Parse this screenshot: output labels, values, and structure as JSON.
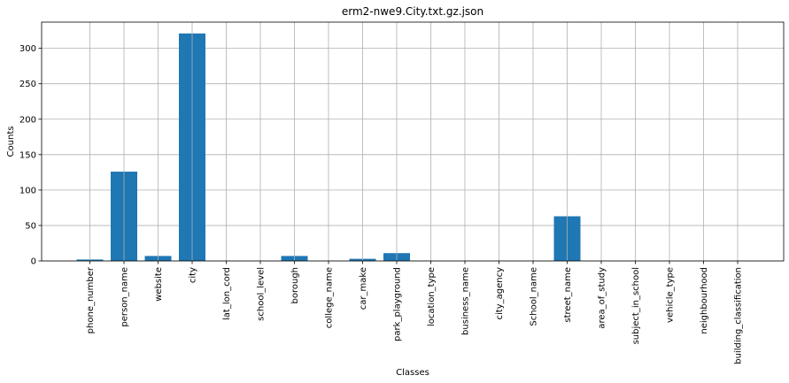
{
  "chart_data": {
    "type": "bar",
    "title": "erm2-nwe9.City.txt.gz.json",
    "xlabel": "Classes",
    "ylabel": "Counts",
    "categories": [
      "phone_number",
      "person_name",
      "website",
      "city",
      "lat_lon_cord",
      "school_level",
      "borough",
      "college_name",
      "car_make",
      "park_playground",
      "location_type",
      "business_name",
      "city_agency",
      "School_name",
      "street_name",
      "area_of_study",
      "subject_in_school",
      "vehicle_type",
      "neighbourhood",
      "building_classification"
    ],
    "values": [
      2,
      126,
      7,
      321,
      0,
      0,
      7,
      0,
      3,
      11,
      0,
      0,
      0,
      0,
      63,
      0,
      0,
      0,
      0,
      0
    ],
    "yticks": [
      0,
      50,
      100,
      150,
      200,
      250,
      300
    ],
    "ylim": [
      0,
      337
    ],
    "grid": true,
    "bar_color": "#1f77b4"
  }
}
